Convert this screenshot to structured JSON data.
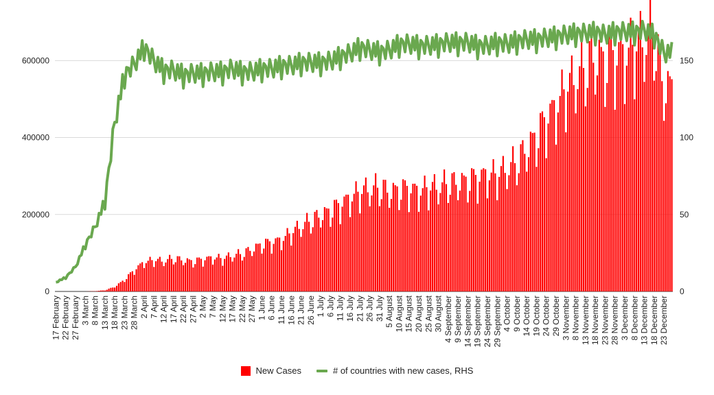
{
  "chart_data": {
    "type": "bar+line",
    "title": "",
    "x_tick_labels": [
      "17 February",
      "22 February",
      "27 February",
      "3 March",
      "8 March",
      "13 March",
      "18 March",
      "23 March",
      "28 March",
      "2 April",
      "7 April",
      "12 April",
      "17 April",
      "22 April",
      "27 April",
      "2 May",
      "7 May",
      "12 May",
      "17 May",
      "22 May",
      "27 May",
      "1 June",
      "6 June",
      "11 June",
      "16 June",
      "21 June",
      "26 June",
      "1 July",
      "6 July",
      "11 July",
      "16 July",
      "21 July",
      "26 July",
      "31 July",
      "5 August",
      "10 August",
      "15 August",
      "20 August",
      "25 August",
      "30 August",
      "4 September",
      "9 September",
      "14 September",
      "19 September",
      "24 September",
      "29 September",
      "4 October",
      "9 October",
      "14 October",
      "19 October",
      "24 October",
      "29 October",
      "3 November",
      "8 November",
      "13 November",
      "18 November",
      "23 November",
      "28 November",
      "3 December",
      "8 December",
      "13 December",
      "18 December",
      "23 December"
    ],
    "left_axis": {
      "ticks": [
        "0",
        "200000",
        "400000",
        "600000"
      ],
      "ylim": [
        0,
        720000
      ]
    },
    "right_axis": {
      "ticks": [
        "0",
        "50",
        "100",
        "150"
      ],
      "ylim": [
        0,
        180
      ]
    },
    "series": [
      {
        "name": "New Cases",
        "kind": "bar",
        "axis": "left",
        "color": "#ff0000",
        "weekly_avg_values": [
          0,
          0,
          0,
          0,
          800,
          3000,
          12000,
          30000,
          55000,
          75000,
          80000,
          78000,
          84000,
          80000,
          76000,
          82000,
          86000,
          84000,
          92000,
          96000,
          108000,
          120000,
          125000,
          132000,
          150000,
          168000,
          180000,
          195000,
          205000,
          222000,
          238000,
          255000,
          262000,
          265000,
          255000,
          258000,
          262000,
          255000,
          265000,
          268000,
          275000,
          278000,
          282000,
          290000,
          298000,
          298000,
          315000,
          330000,
          365000,
          395000,
          440000,
          470000,
          520000,
          548000,
          575000,
          600000,
          585000,
          600000,
          600000,
          628000,
          645000,
          655000,
          520000
        ]
      },
      {
        "name": "# of countries with new cases, RHS",
        "kind": "line",
        "axis": "right",
        "color": "#6aa84f",
        "weekly_values": [
          6,
          9,
          16,
          30,
          42,
          58,
          110,
          140,
          148,
          158,
          150,
          143,
          144,
          140,
          142,
          141,
          143,
          142,
          145,
          142,
          143,
          144,
          145,
          146,
          147,
          148,
          149,
          148,
          150,
          152,
          155,
          158,
          157,
          155,
          157,
          160,
          161,
          159,
          160,
          160,
          162,
          161,
          162,
          159,
          160,
          161,
          161,
          162,
          164,
          163,
          165,
          165,
          167,
          167,
          168,
          168,
          167,
          168,
          169,
          168,
          170,
          166,
          155
        ]
      }
    ],
    "legend_placement": "bottom-center",
    "grid": true
  }
}
